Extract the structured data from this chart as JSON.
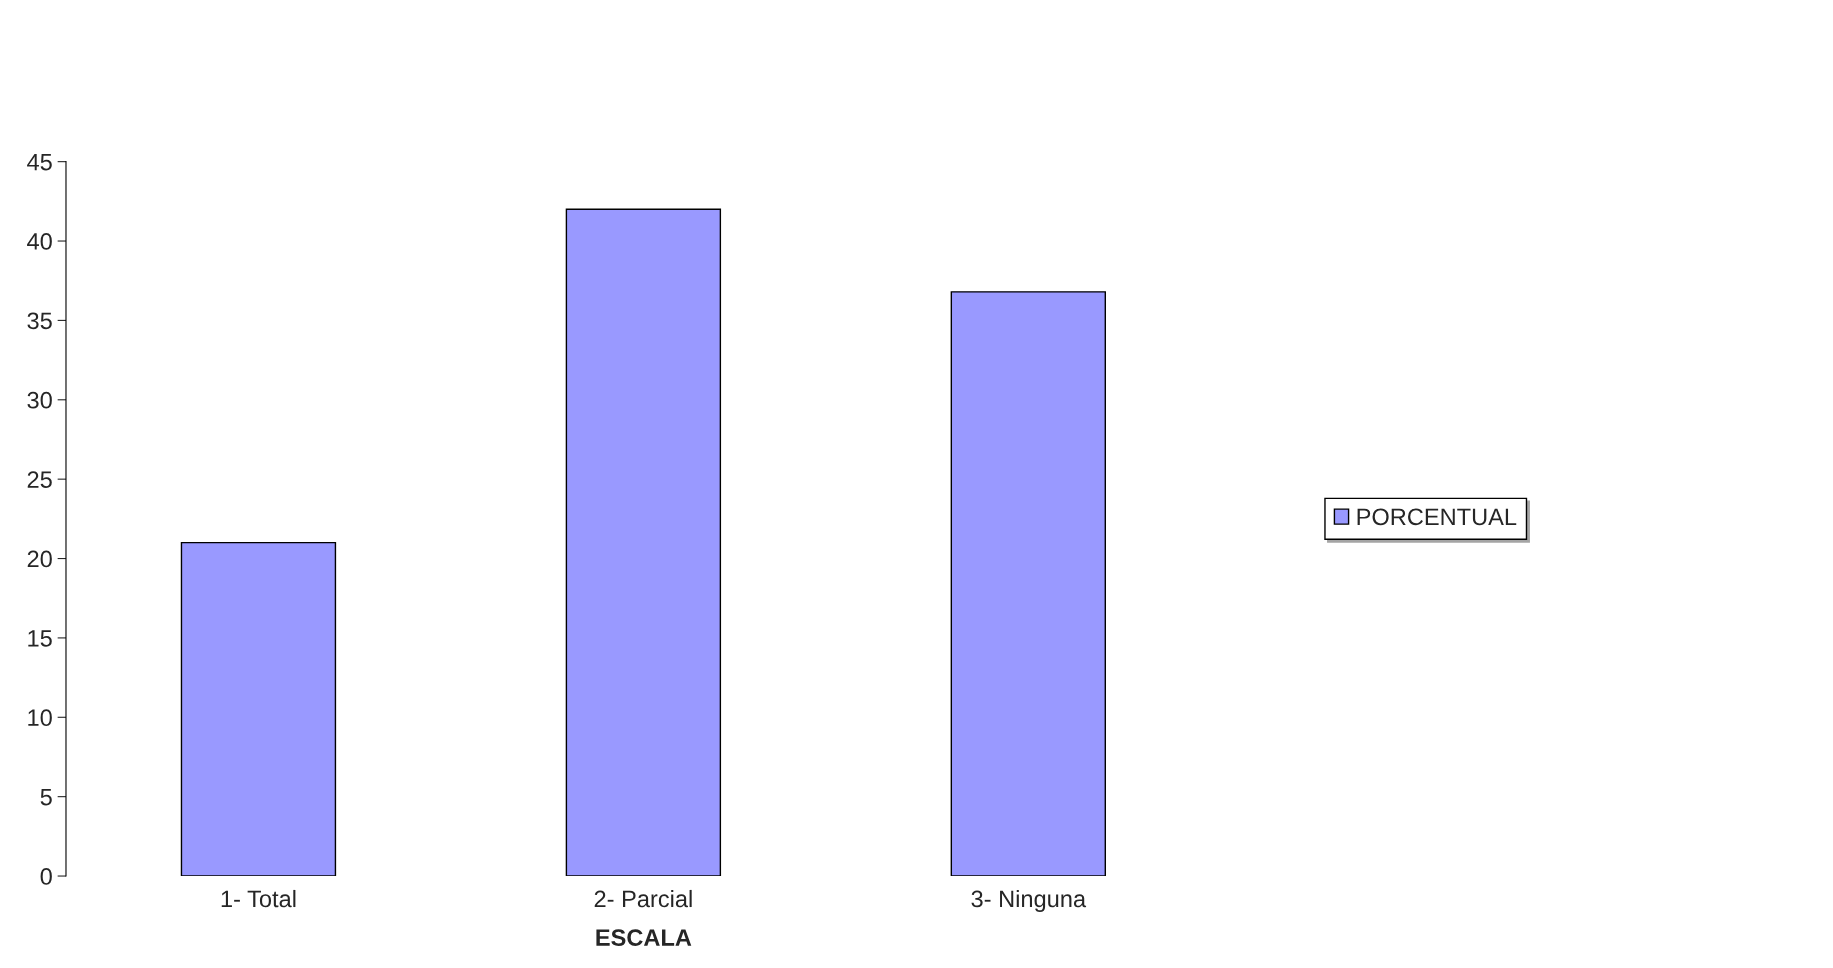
{
  "chart_data": {
    "type": "bar",
    "xlabel": "ESCALA",
    "categories": [
      "1- Total",
      "2- Parcial",
      "3- Ninguna"
    ],
    "series": [
      {
        "name": "PORCENTUAL",
        "color": "#9999ff",
        "values": [
          21,
          42,
          36.8
        ]
      }
    ],
    "ylim": [
      0,
      45
    ],
    "yticks": [
      0,
      5,
      10,
      15,
      20,
      25,
      30,
      35,
      40,
      45
    ],
    "grid": false,
    "legend": "right"
  }
}
